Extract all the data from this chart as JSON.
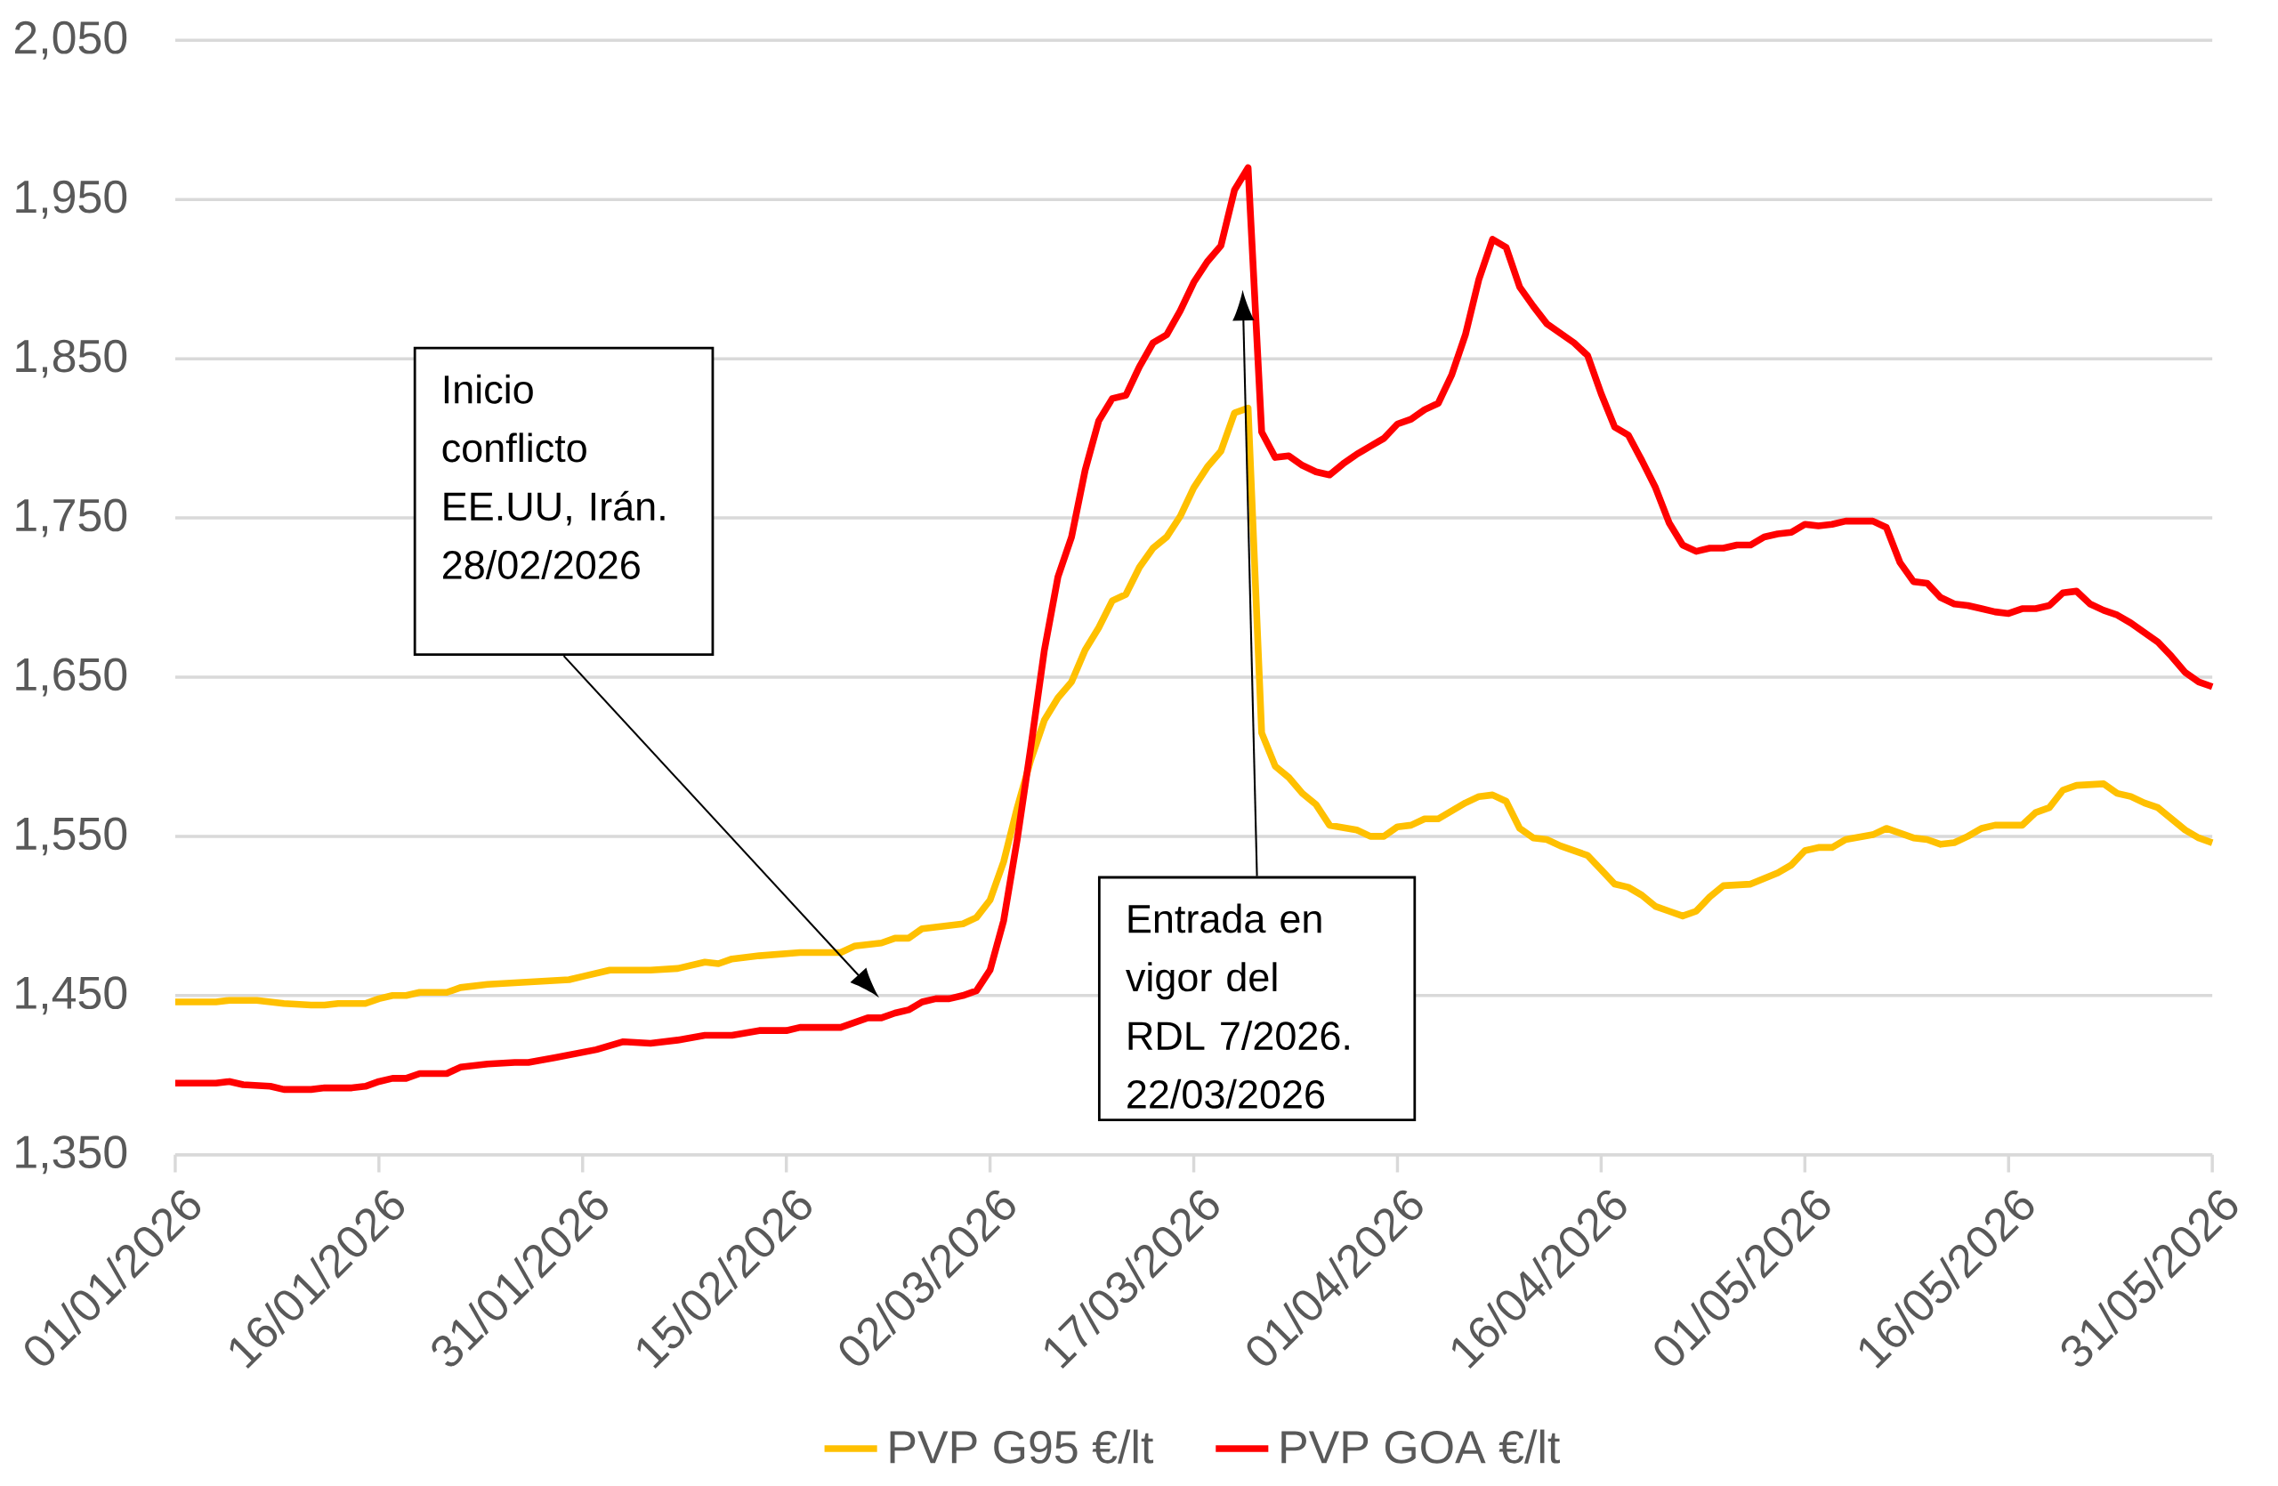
{
  "chart_data": {
    "type": "line",
    "xlim": [
      "2026-01-01",
      "2026-05-31"
    ],
    "xticks": [
      {
        "value": "2026-01-01",
        "label": "01/01/2026"
      },
      {
        "value": "2026-01-16",
        "label": "16/01/2026"
      },
      {
        "value": "2026-01-31",
        "label": "31/01/2026"
      },
      {
        "value": "2026-02-15",
        "label": "15/02/2026"
      },
      {
        "value": "2026-03-02",
        "label": "02/03/2026"
      },
      {
        "value": "2026-03-17",
        "label": "17/03/2026"
      },
      {
        "value": "2026-04-01",
        "label": "01/04/2026"
      },
      {
        "value": "2026-04-16",
        "label": "16/04/2026"
      },
      {
        "value": "2026-05-01",
        "label": "01/05/2026"
      },
      {
        "value": "2026-05-16",
        "label": "16/05/2026"
      },
      {
        "value": "2026-05-31",
        "label": "31/05/2026"
      }
    ],
    "ylim": [
      1350,
      2050
    ],
    "yticks": [
      {
        "value": 1350,
        "label": "1,350"
      },
      {
        "value": 1450,
        "label": "1,450"
      },
      {
        "value": 1550,
        "label": "1,550"
      },
      {
        "value": 1650,
        "label": "1,650"
      },
      {
        "value": 1750,
        "label": "1,750"
      },
      {
        "value": 1850,
        "label": "1,850"
      },
      {
        "value": 1950,
        "label": "1,950"
      },
      {
        "value": 2050,
        "label": "2,050"
      }
    ],
    "grid": "y",
    "legend": "bottom",
    "annotations": [
      "Inicio conflicto EE.UU, Irán. 28/02/2026",
      "Entrada en vigor del RDL 7/2026. 22/03/2026"
    ],
    "series": [
      {
        "name": "PVP G95 €/lt",
        "color": "#ffc000",
        "x": [
          "2026-01-01",
          "2026-01-04",
          "2026-01-05",
          "2026-01-07",
          "2026-01-09",
          "2026-01-11",
          "2026-01-12",
          "2026-01-13",
          "2026-01-15",
          "2026-01-16",
          "2026-01-17",
          "2026-01-18",
          "2026-01-19",
          "2026-01-21",
          "2026-01-22",
          "2026-01-24",
          "2026-01-26",
          "2026-01-28",
          "2026-01-30",
          "2026-01-31",
          "2026-02-02",
          "2026-02-05",
          "2026-02-07",
          "2026-02-09",
          "2026-02-10",
          "2026-02-11",
          "2026-02-13",
          "2026-02-16",
          "2026-02-19",
          "2026-02-20",
          "2026-02-22",
          "2026-02-23",
          "2026-02-24",
          "2026-02-25",
          "2026-02-27",
          "2026-02-28",
          "2026-03-01",
          "2026-03-02",
          "2026-03-03",
          "2026-03-04",
          "2026-03-05",
          "2026-03-06",
          "2026-03-07",
          "2026-03-08",
          "2026-03-09",
          "2026-03-10",
          "2026-03-11",
          "2026-03-12",
          "2026-03-13",
          "2026-03-14",
          "2026-03-15",
          "2026-03-16",
          "2026-03-17",
          "2026-03-18",
          "2026-03-19",
          "2026-03-20",
          "2026-03-21",
          "2026-03-22",
          "2026-03-23",
          "2026-03-24",
          "2026-03-25",
          "2026-03-26",
          "2026-03-27",
          "2026-03-29",
          "2026-03-30",
          "2026-03-31",
          "2026-04-01",
          "2026-04-02",
          "2026-04-03",
          "2026-04-04",
          "2026-04-05",
          "2026-04-06",
          "2026-04-07",
          "2026-04-08",
          "2026-04-09",
          "2026-04-10",
          "2026-04-11",
          "2026-04-12",
          "2026-04-13",
          "2026-04-15",
          "2026-04-16",
          "2026-04-17",
          "2026-04-18",
          "2026-04-19",
          "2026-04-20",
          "2026-04-21",
          "2026-04-22",
          "2026-04-23",
          "2026-04-24",
          "2026-04-25",
          "2026-04-27",
          "2026-04-29",
          "2026-04-30",
          "2026-05-01",
          "2026-05-02",
          "2026-05-03",
          "2026-05-04",
          "2026-05-06",
          "2026-05-07",
          "2026-05-09",
          "2026-05-10",
          "2026-05-11",
          "2026-05-12",
          "2026-05-13",
          "2026-05-14",
          "2026-05-15",
          "2026-05-17",
          "2026-05-18",
          "2026-05-19",
          "2026-05-20",
          "2026-05-21",
          "2026-05-23",
          "2026-05-24",
          "2026-05-25",
          "2026-05-26",
          "2026-05-27",
          "2026-05-28",
          "2026-05-29",
          "2026-05-30",
          "2026-05-31"
        ],
        "values": [
          1446,
          1446,
          1447,
          1447,
          1445,
          1444,
          1444,
          1445,
          1445,
          1448,
          1450,
          1450,
          1452,
          1452,
          1455,
          1457,
          1458,
          1459,
          1460,
          1462,
          1466,
          1466,
          1467,
          1471,
          1470,
          1473,
          1475,
          1477,
          1477,
          1481,
          1483,
          1486,
          1486,
          1492,
          1494,
          1495,
          1499,
          1510,
          1534,
          1568,
          1598,
          1623,
          1637,
          1647,
          1667,
          1681,
          1698,
          1702,
          1719,
          1731,
          1738,
          1751,
          1769,
          1782,
          1792,
          1816,
          1819,
          1615,
          1594,
          1587,
          1577,
          1570,
          1557,
          1554,
          1550,
          1550,
          1556,
          1557,
          1561,
          1561,
          1566,
          1571,
          1575,
          1576,
          1572,
          1555,
          1549,
          1548,
          1544,
          1538,
          1529,
          1520,
          1518,
          1513,
          1506,
          1503,
          1500,
          1503,
          1512,
          1519,
          1520,
          1527,
          1532,
          1541,
          1543,
          1543,
          1548,
          1551,
          1555,
          1549,
          1548,
          1545,
          1546,
          1550,
          1555,
          1557,
          1557,
          1565,
          1568,
          1579,
          1582,
          1583,
          1577,
          1575,
          1571,
          1568,
          1561,
          1554,
          1549,
          1546
        ]
      },
      {
        "name": "PVP GOA €/lt",
        "color": "#ff0000",
        "x": [
          "2026-01-01",
          "2026-01-04",
          "2026-01-05",
          "2026-01-06",
          "2026-01-08",
          "2026-01-09",
          "2026-01-11",
          "2026-01-12",
          "2026-01-14",
          "2026-01-15",
          "2026-01-16",
          "2026-01-17",
          "2026-01-18",
          "2026-01-19",
          "2026-01-21",
          "2026-01-22",
          "2026-01-24",
          "2026-01-26",
          "2026-01-27",
          "2026-01-29",
          "2026-02-01",
          "2026-02-03",
          "2026-02-05",
          "2026-02-07",
          "2026-02-09",
          "2026-02-11",
          "2026-02-13",
          "2026-02-15",
          "2026-02-16",
          "2026-02-19",
          "2026-02-21",
          "2026-02-22",
          "2026-02-23",
          "2026-02-24",
          "2026-02-25",
          "2026-02-26",
          "2026-02-27",
          "2026-02-28",
          "2026-03-01",
          "2026-03-02",
          "2026-03-03",
          "2026-03-04",
          "2026-03-05",
          "2026-03-06",
          "2026-03-07",
          "2026-03-08",
          "2026-03-09",
          "2026-03-10",
          "2026-03-11",
          "2026-03-12",
          "2026-03-13",
          "2026-03-14",
          "2026-03-15",
          "2026-03-16",
          "2026-03-17",
          "2026-03-18",
          "2026-03-19",
          "2026-03-20",
          "2026-03-21",
          "2026-03-22",
          "2026-03-23",
          "2026-03-24",
          "2026-03-25",
          "2026-03-26",
          "2026-03-27",
          "2026-03-28",
          "2026-03-29",
          "2026-03-30",
          "2026-03-31",
          "2026-04-01",
          "2026-04-02",
          "2026-04-03",
          "2026-04-04",
          "2026-04-05",
          "2026-04-06",
          "2026-04-07",
          "2026-04-08",
          "2026-04-09",
          "2026-04-10",
          "2026-04-11",
          "2026-04-12",
          "2026-04-13",
          "2026-04-14",
          "2026-04-15",
          "2026-04-16",
          "2026-04-17",
          "2026-04-18",
          "2026-04-19",
          "2026-04-20",
          "2026-04-21",
          "2026-04-22",
          "2026-04-23",
          "2026-04-24",
          "2026-04-25",
          "2026-04-26",
          "2026-04-27",
          "2026-04-28",
          "2026-04-29",
          "2026-04-30",
          "2026-05-01",
          "2026-05-02",
          "2026-05-03",
          "2026-05-04",
          "2026-05-06",
          "2026-05-07",
          "2026-05-08",
          "2026-05-09",
          "2026-05-10",
          "2026-05-11",
          "2026-05-12",
          "2026-05-13",
          "2026-05-14",
          "2026-05-15",
          "2026-05-16",
          "2026-05-17",
          "2026-05-18",
          "2026-05-19",
          "2026-05-20",
          "2026-05-21",
          "2026-05-22",
          "2026-05-23",
          "2026-05-24",
          "2026-05-25",
          "2026-05-26",
          "2026-05-27",
          "2026-05-28",
          "2026-05-29",
          "2026-05-30",
          "2026-05-31"
        ],
        "values": [
          1395,
          1395,
          1396,
          1394,
          1393,
          1391,
          1391,
          1392,
          1392,
          1393,
          1396,
          1398,
          1398,
          1401,
          1401,
          1405,
          1407,
          1408,
          1408,
          1411,
          1416,
          1421,
          1420,
          1422,
          1425,
          1425,
          1428,
          1428,
          1430,
          1430,
          1436,
          1436,
          1439,
          1441,
          1446,
          1448,
          1448,
          1450,
          1453,
          1466,
          1497,
          1548,
          1606,
          1667,
          1713,
          1738,
          1780,
          1811,
          1825,
          1827,
          1845,
          1860,
          1865,
          1880,
          1898,
          1911,
          1921,
          1956,
          1970,
          1804,
          1788,
          1789,
          1783,
          1779,
          1777,
          1784,
          1790,
          1795,
          1800,
          1809,
          1812,
          1818,
          1822,
          1840,
          1865,
          1900,
          1925,
          1920,
          1895,
          1883,
          1872,
          1866,
          1860,
          1852,
          1828,
          1807,
          1802,
          1786,
          1769,
          1747,
          1733,
          1729,
          1731,
          1731,
          1733,
          1733,
          1738,
          1740,
          1741,
          1746,
          1745,
          1746,
          1748,
          1748,
          1744,
          1722,
          1710,
          1709,
          1700,
          1696,
          1695,
          1693,
          1691,
          1690,
          1693,
          1693,
          1695,
          1703,
          1704,
          1696,
          1692,
          1689,
          1684,
          1678,
          1672,
          1663,
          1653,
          1647,
          1644
        ]
      }
    ]
  }
}
